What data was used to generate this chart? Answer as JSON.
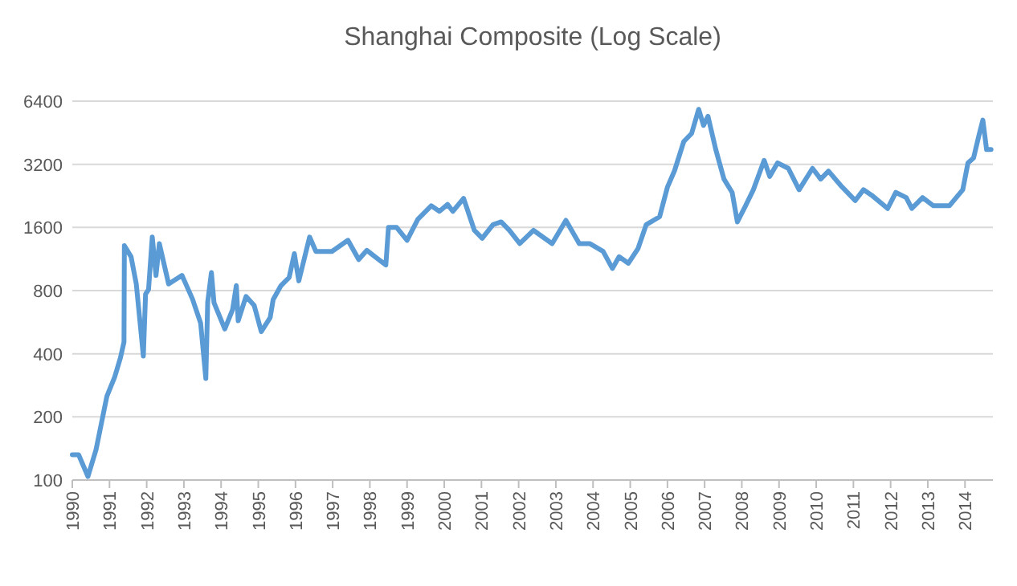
{
  "chart_data": {
    "type": "line",
    "title": "Shanghai Composite (Log Scale)",
    "log": "y",
    "grid": "y",
    "xlim": [
      1990,
      2014.75
    ],
    "xticks": [
      1990,
      1991,
      1992,
      1993,
      1994,
      1995,
      1996,
      1997,
      1998,
      1999,
      2000,
      2001,
      2002,
      2003,
      2004,
      2005,
      2006,
      2007,
      2008,
      2009,
      2010,
      2011,
      2012,
      2013,
      2014
    ],
    "ylim": [
      100,
      6400
    ],
    "yticks": [
      100,
      200,
      400,
      800,
      1600,
      3200,
      6400
    ],
    "series": [
      {
        "color": "#5b9bd5",
        "x": [
          1990.0,
          1990.17,
          1990.42,
          1990.64,
          1990.93,
          1991.14,
          1991.29,
          1991.39,
          1991.4,
          1991.58,
          1991.72,
          1991.91,
          1991.97,
          1992.05,
          1992.15,
          1992.25,
          1992.34,
          1992.59,
          1992.95,
          1993.23,
          1993.45,
          1993.59,
          1993.64,
          1993.74,
          1993.81,
          1994.1,
          1994.31,
          1994.41,
          1994.46,
          1994.67,
          1994.89,
          1995.08,
          1995.32,
          1995.4,
          1995.61,
          1995.83,
          1995.97,
          1996.09,
          1996.38,
          1996.55,
          1996.98,
          1997.41,
          1997.7,
          1997.92,
          1998.14,
          1998.43,
          1998.5,
          1998.72,
          1999.0,
          1999.29,
          1999.65,
          1999.87,
          2000.09,
          2000.23,
          2000.52,
          2000.81,
          2001.02,
          2001.31,
          2001.53,
          2001.75,
          2002.03,
          2002.4,
          2002.9,
          2003.27,
          2003.63,
          2003.91,
          2004.27,
          2004.52,
          2004.7,
          2004.95,
          2005.21,
          2005.43,
          2005.79,
          2006.0,
          2006.19,
          2006.44,
          2006.65,
          2006.84,
          2006.97,
          2007.09,
          2007.3,
          2007.52,
          2007.74,
          2007.88,
          2008.1,
          2008.31,
          2008.6,
          2008.75,
          2008.96,
          2009.25,
          2009.54,
          2009.9,
          2010.12,
          2010.33,
          2010.69,
          2011.05,
          2011.27,
          2011.49,
          2011.92,
          2012.14,
          2012.42,
          2012.57,
          2012.86,
          2013.15,
          2013.58,
          2013.94,
          2014.08,
          2014.23,
          2014.37,
          2014.48,
          2014.58,
          2014.7
        ],
        "values": [
          132,
          132,
          104,
          140,
          251,
          310,
          380,
          455,
          1310,
          1160,
          860,
          390,
          770,
          810,
          1440,
          945,
          1340,
          860,
          945,
          730,
          560,
          305,
          705,
          975,
          700,
          525,
          650,
          845,
          575,
          750,
          680,
          510,
          595,
          725,
          845,
          925,
          1200,
          890,
          1440,
          1230,
          1230,
          1390,
          1125,
          1245,
          1160,
          1060,
          1600,
          1600,
          1390,
          1750,
          2030,
          1910,
          2060,
          1910,
          2200,
          1550,
          1420,
          1650,
          1700,
          1550,
          1340,
          1550,
          1340,
          1730,
          1340,
          1340,
          1230,
          1020,
          1160,
          1080,
          1270,
          1650,
          1800,
          2490,
          2980,
          4110,
          4490,
          5850,
          4910,
          5420,
          3760,
          2720,
          2350,
          1700,
          2030,
          2420,
          3340,
          2800,
          3250,
          3060,
          2420,
          3060,
          2720,
          2970,
          2500,
          2150,
          2420,
          2280,
          1970,
          2350,
          2220,
          1970,
          2220,
          2030,
          2030,
          2420,
          3250,
          3430,
          4360,
          5200,
          3760,
          3760
        ]
      }
    ]
  }
}
